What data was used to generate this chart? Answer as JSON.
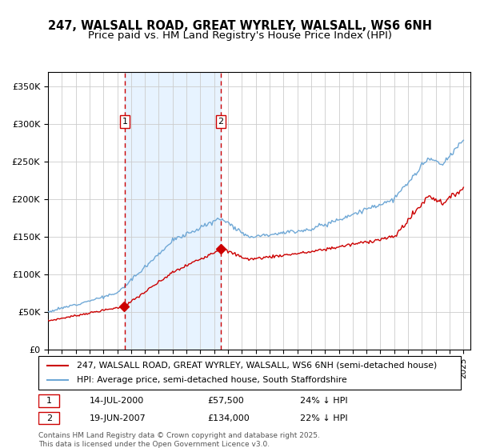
{
  "title_line1": "247, WALSALL ROAD, GREAT WYRLEY, WALSALL, WS6 6NH",
  "title_line2": "Price paid vs. HM Land Registry's House Price Index (HPI)",
  "legend_line1": "247, WALSALL ROAD, GREAT WYRLEY, WALSALL, WS6 6NH (semi-detached house)",
  "legend_line2": "HPI: Average price, semi-detached house, South Staffordshire",
  "footnote": "Contains HM Land Registry data © Crown copyright and database right 2025.\nThis data is licensed under the Open Government Licence v3.0.",
  "sale1_date": "14-JUL-2000",
  "sale1_price": 57500,
  "sale1_hpi_diff": "24% ↓ HPI",
  "sale2_date": "19-JUN-2007",
  "sale2_price": 134000,
  "sale2_hpi_diff": "22% ↓ HPI",
  "sale1_label": "1",
  "sale2_label": "2",
  "sale1_year": 2000.54,
  "sale2_year": 2007.47,
  "ylim_min": 0,
  "ylim_max": 370000,
  "start_year": 1995,
  "end_year": 2025,
  "hpi_color": "#6fa8d6",
  "price_color": "#cc0000",
  "bg_shade_color": "#ddeeff",
  "grid_color": "#cccccc",
  "title_fontsize": 11,
  "subtitle_fontsize": 10,
  "axis_fontsize": 9
}
